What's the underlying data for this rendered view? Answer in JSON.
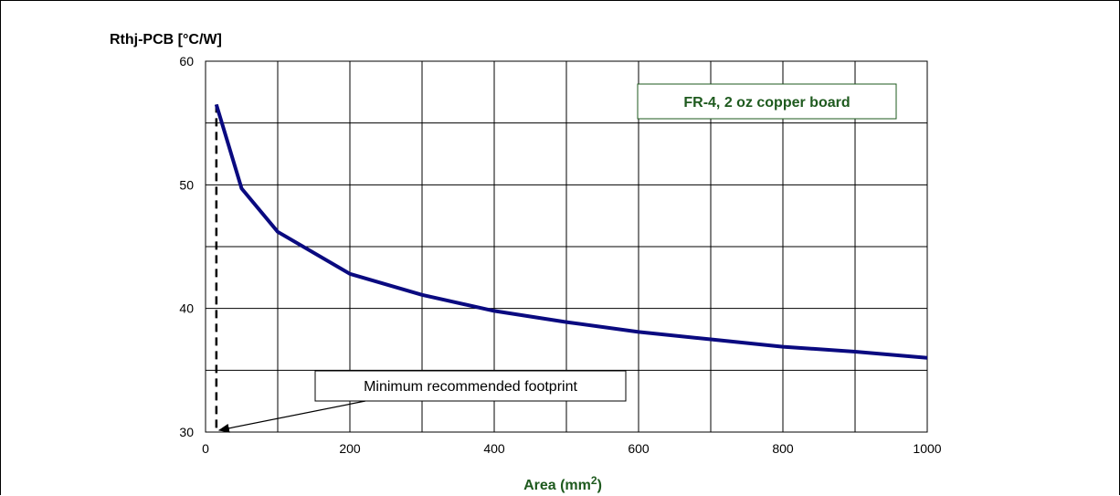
{
  "chart_data": {
    "type": "line",
    "ylabel": "Rthj-PCB [°C/W]",
    "xlabel_main": "Area (mm",
    "xlabel_sup": "2",
    "xlabel_close": ")",
    "xlim": [
      0,
      1000
    ],
    "ylim": [
      30,
      60
    ],
    "x_ticks": [
      "0",
      "200",
      "400",
      "600",
      "800",
      "1000"
    ],
    "y_ticks": [
      "30",
      "40",
      "50",
      "60"
    ],
    "grid": true,
    "series": [
      {
        "color": "#0a0a80",
        "x": [
          15,
          50,
          100,
          200,
          300,
          400,
          500,
          600,
          700,
          800,
          900,
          1000
        ],
        "y": [
          56.5,
          49.7,
          46.2,
          42.8,
          41.1,
          39.8,
          38.9,
          38.1,
          37.5,
          36.9,
          36.5,
          36.0
        ]
      }
    ],
    "annotations": {
      "board_label": "FR-4,  2 oz copper board",
      "footprint_label": "Minimum recommended footprint",
      "footprint_x": 15
    }
  },
  "colors": {
    "series_line": "#0a0a80",
    "label_green": "#1e5a1e"
  }
}
